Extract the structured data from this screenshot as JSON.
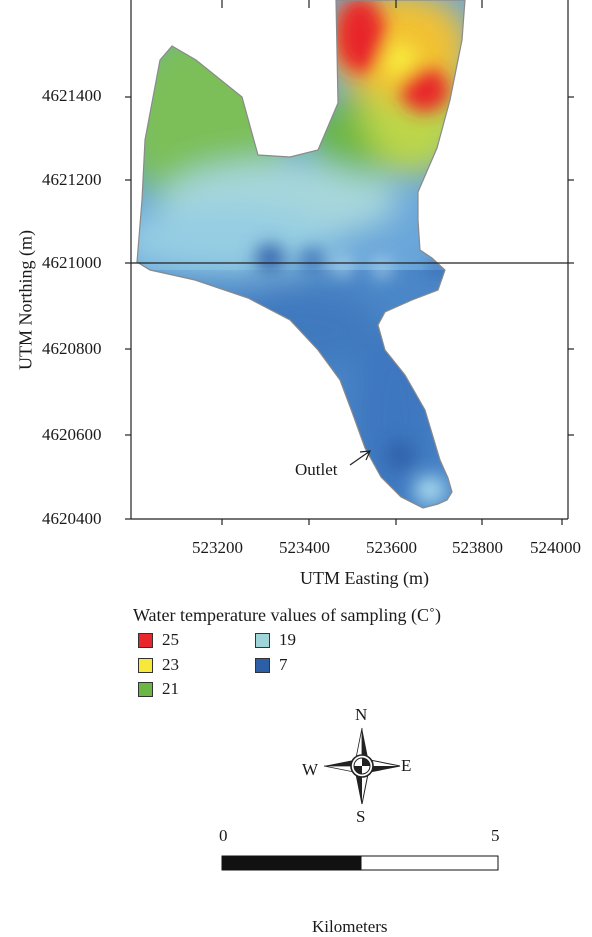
{
  "map": {
    "x_axis_label": "UTM Easting (m)",
    "y_axis_label": "UTM Northing (m)",
    "x_ticks": [
      "523200",
      "523400",
      "523600",
      "523800",
      "524000"
    ],
    "y_ticks": [
      "4621400",
      "4621200",
      "4621000",
      "4620800",
      "4620600",
      "4620400"
    ],
    "annotation": "Outlet",
    "colors": {
      "t25": "#e8262c",
      "t23": "#f7e83a",
      "t21": "#6cb646",
      "t19": "#9fd4d8",
      "t7": "#2d5fa8"
    }
  },
  "legend": {
    "title": "Water temperature values of sampling (C˚)",
    "items": [
      {
        "value": "25",
        "color": "#e8262c"
      },
      {
        "value": "23",
        "color": "#f7e83a"
      },
      {
        "value": "21",
        "color": "#6cb646"
      },
      {
        "value": "19",
        "color": "#9fd4d8"
      },
      {
        "value": "7",
        "color": "#2d5fa8"
      }
    ]
  },
  "compass": {
    "n": "N",
    "s": "S",
    "e": "E",
    "w": "W"
  },
  "scale_bar": {
    "start": "0",
    "end": "5",
    "unit": "Kilometers"
  }
}
